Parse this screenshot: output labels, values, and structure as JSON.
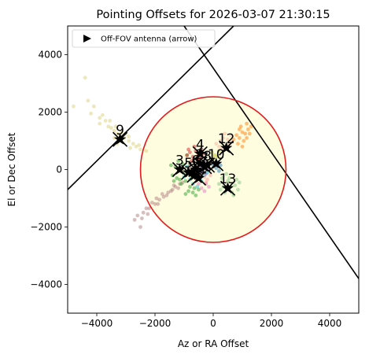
{
  "chart_data": {
    "type": "scatter",
    "title": "Pointing Offsets for 2026-03-07 21:30:15",
    "xlabel": "Az or RA Offset",
    "ylabel": "El or Dec Offset",
    "xlim": [
      -5000,
      5000
    ],
    "ylim": [
      -5000,
      5000
    ],
    "xticks": [
      -4000,
      -2000,
      0,
      2000,
      4000
    ],
    "yticks": [
      -4000,
      -2000,
      0,
      2000,
      4000
    ],
    "x_tick_labels": [
      "−4000",
      "−2000",
      "0",
      "2000",
      "4000"
    ],
    "y_tick_labels": [
      "−4000",
      "−2000",
      "0",
      "2000",
      "4000"
    ],
    "grid": false,
    "legend": {
      "placement": "top-left",
      "entries": [
        "Off-FOV antenna (arrow)"
      ]
    },
    "fov_circle": {
      "center": [
        0,
        0
      ],
      "radius": 2500,
      "edge_color": "#e31a1c",
      "fill_color": "#fffde0"
    },
    "lines": [
      {
        "from": [
          -5000,
          -700
        ],
        "to": [
          700,
          5000
        ],
        "color": "#000000"
      },
      {
        "from": [
          -1000,
          5000
        ],
        "to": [
          5000,
          -3800
        ],
        "color": "#000000"
      }
    ],
    "antennas": [
      {
        "label": "1",
        "x": -650,
        "y": -200
      },
      {
        "label": "2",
        "x": -450,
        "y": 200
      },
      {
        "label": "3",
        "x": -1150,
        "y": 0
      },
      {
        "label": "4",
        "x": -450,
        "y": 550
      },
      {
        "label": "5",
        "x": -850,
        "y": -100
      },
      {
        "label": "6",
        "x": -600,
        "y": 0
      },
      {
        "label": "7",
        "x": -300,
        "y": 100
      },
      {
        "label": "8",
        "x": -200,
        "y": 150
      },
      {
        "label": "9",
        "x": -3200,
        "y": 1050
      },
      {
        "label": "10",
        "x": 100,
        "y": 200
      },
      {
        "label": "11",
        "x": -500,
        "y": -300
      },
      {
        "label": "12",
        "x": 450,
        "y": 750
      },
      {
        "label": "13",
        "x": 500,
        "y": -650
      }
    ],
    "clusters": [
      {
        "color": "#d9d27a",
        "points": [
          [
            -4800,
            2200
          ],
          [
            -4300,
            2400
          ],
          [
            -4100,
            2200
          ],
          [
            -4200,
            1950
          ],
          [
            -3900,
            1800
          ],
          [
            -3700,
            1700
          ],
          [
            -3900,
            1600
          ],
          [
            -3600,
            1500
          ],
          [
            -3500,
            1450
          ],
          [
            -3400,
            1350
          ],
          [
            -3300,
            1250
          ],
          [
            -3200,
            1200
          ],
          [
            -3050,
            1100
          ],
          [
            -3000,
            1250
          ],
          [
            -2900,
            1000
          ],
          [
            -2750,
            900
          ],
          [
            -2650,
            800
          ],
          [
            -3100,
            950
          ],
          [
            -3300,
            900
          ],
          [
            -3400,
            1100
          ],
          [
            -2500,
            700
          ],
          [
            -2300,
            650
          ],
          [
            -4400,
            3200
          ],
          [
            -3800,
            1900
          ],
          [
            -3550,
            1700
          ],
          [
            -2900,
            1150
          ],
          [
            -3150,
            1300
          ],
          [
            -3350,
            1500
          ],
          [
            -2550,
            850
          ],
          [
            -2850,
            750
          ]
        ]
      },
      {
        "color": "#b07f7f",
        "points": [
          [
            -2600,
            -1600
          ],
          [
            -2400,
            -1500
          ],
          [
            -2200,
            -1350
          ],
          [
            -2000,
            -1200
          ],
          [
            -1850,
            -1050
          ],
          [
            -1700,
            -950
          ],
          [
            -1550,
            -800
          ],
          [
            -1400,
            -700
          ],
          [
            -1300,
            -600
          ],
          [
            -1150,
            -500
          ],
          [
            -2300,
            -1350
          ],
          [
            -2100,
            -1150
          ],
          [
            -1950,
            -1000
          ],
          [
            -1600,
            -900
          ],
          [
            -1450,
            -750
          ],
          [
            -2700,
            -1750
          ],
          [
            -2500,
            -2000
          ],
          [
            -1200,
            -650
          ],
          [
            -1050,
            -450
          ],
          [
            -1750,
            -850
          ],
          [
            -2450,
            -1700
          ],
          [
            -2250,
            -1550
          ],
          [
            -1900,
            -1200
          ],
          [
            -1350,
            -550
          ]
        ]
      },
      {
        "color": "#2ca02c",
        "points": [
          [
            -1400,
            -200
          ],
          [
            -1250,
            -300
          ],
          [
            -1300,
            100
          ],
          [
            -1100,
            -500
          ],
          [
            -950,
            -400
          ],
          [
            -1050,
            200
          ],
          [
            -800,
            -600
          ],
          [
            -700,
            -800
          ],
          [
            -600,
            -900
          ],
          [
            -500,
            -700
          ],
          [
            -1200,
            300
          ],
          [
            -1000,
            -100
          ],
          [
            -900,
            500
          ],
          [
            -1450,
            150
          ],
          [
            -1150,
            -350
          ],
          [
            -850,
            -750
          ],
          [
            -650,
            -650
          ],
          [
            -750,
            -300
          ],
          [
            -1350,
            -400
          ],
          [
            -950,
            -850
          ]
        ]
      },
      {
        "color": "#7fc47f",
        "points": [
          [
            300,
            -300
          ],
          [
            500,
            -400
          ],
          [
            600,
            -600
          ],
          [
            750,
            -550
          ],
          [
            400,
            -800
          ],
          [
            650,
            -800
          ],
          [
            850,
            -700
          ],
          [
            200,
            -500
          ],
          [
            550,
            -300
          ],
          [
            700,
            -900
          ],
          [
            350,
            -600
          ],
          [
            900,
            -450
          ],
          [
            450,
            -150
          ],
          [
            250,
            -700
          ],
          [
            800,
            -350
          ]
        ]
      },
      {
        "color": "#ff7f0e",
        "points": [
          [
            800,
            1200
          ],
          [
            900,
            1100
          ],
          [
            1000,
            1300
          ],
          [
            1100,
            1250
          ],
          [
            950,
            1500
          ],
          [
            1200,
            1400
          ],
          [
            1050,
            1000
          ],
          [
            850,
            900
          ],
          [
            1150,
            1100
          ],
          [
            1300,
            1500
          ],
          [
            700,
            1050
          ],
          [
            1000,
            800
          ],
          [
            1250,
            1250
          ],
          [
            900,
            1400
          ],
          [
            1150,
            1600
          ]
        ]
      },
      {
        "color": "#f4b69a",
        "points": [
          [
            100,
            900
          ],
          [
            250,
            1000
          ],
          [
            350,
            1100
          ],
          [
            500,
            1050
          ],
          [
            600,
            1200
          ],
          [
            200,
            800
          ],
          [
            400,
            1250
          ],
          [
            650,
            1000
          ],
          [
            300,
            700
          ],
          [
            550,
            900
          ]
        ]
      },
      {
        "color": "#d62728",
        "points": [
          [
            -800,
            600
          ],
          [
            -700,
            450
          ],
          [
            -600,
            650
          ],
          [
            -500,
            500
          ],
          [
            -750,
            300
          ],
          [
            -650,
            800
          ],
          [
            -550,
            350
          ],
          [
            -400,
            700
          ],
          [
            -900,
            500
          ],
          [
            -450,
            400
          ],
          [
            -850,
            700
          ],
          [
            -350,
            550
          ]
        ]
      },
      {
        "color": "#17becf",
        "points": [
          [
            -900,
            100
          ],
          [
            -700,
            -100
          ],
          [
            -800,
            -350
          ],
          [
            -600,
            -250
          ],
          [
            -500,
            -50
          ],
          [
            -300,
            -200
          ],
          [
            -400,
            -400
          ],
          [
            -700,
            -500
          ],
          [
            -200,
            -100
          ],
          [
            -1000,
            -250
          ],
          [
            -550,
            -600
          ],
          [
            -350,
            50
          ]
        ]
      },
      {
        "color": "#9467bd",
        "points": [
          [
            -400,
            100
          ],
          [
            -300,
            300
          ],
          [
            -200,
            0
          ],
          [
            -500,
            250
          ],
          [
            -250,
            -150
          ],
          [
            -350,
            -50
          ],
          [
            -150,
            200
          ],
          [
            -450,
            -100
          ]
        ]
      },
      {
        "color": "#ff9896",
        "points": [
          [
            -300,
            -250
          ],
          [
            -450,
            -200
          ],
          [
            -200,
            -350
          ],
          [
            -100,
            -200
          ],
          [
            -550,
            -350
          ],
          [
            -250,
            -450
          ]
        ]
      },
      {
        "color": "#1f77b4",
        "points": [
          [
            0,
            150
          ],
          [
            150,
            250
          ],
          [
            100,
            50
          ],
          [
            250,
            150
          ],
          [
            -50,
            300
          ],
          [
            200,
            -50
          ]
        ]
      },
      {
        "color": "#e377c2",
        "points": [
          [
            -250,
            -500
          ],
          [
            -400,
            -650
          ],
          [
            -150,
            -600
          ],
          [
            -300,
            -750
          ],
          [
            -500,
            -500
          ]
        ]
      },
      {
        "color": "#8c564b",
        "points": [
          [
            -600,
            100
          ],
          [
            -750,
            0
          ],
          [
            -650,
            -150
          ],
          [
            -800,
            150
          ],
          [
            -550,
            250
          ]
        ]
      },
      {
        "color": "#bcbd22",
        "points": [
          [
            50,
            500
          ],
          [
            150,
            450
          ],
          [
            -50,
            600
          ],
          [
            200,
            650
          ],
          [
            0,
            400
          ]
        ]
      }
    ]
  }
}
